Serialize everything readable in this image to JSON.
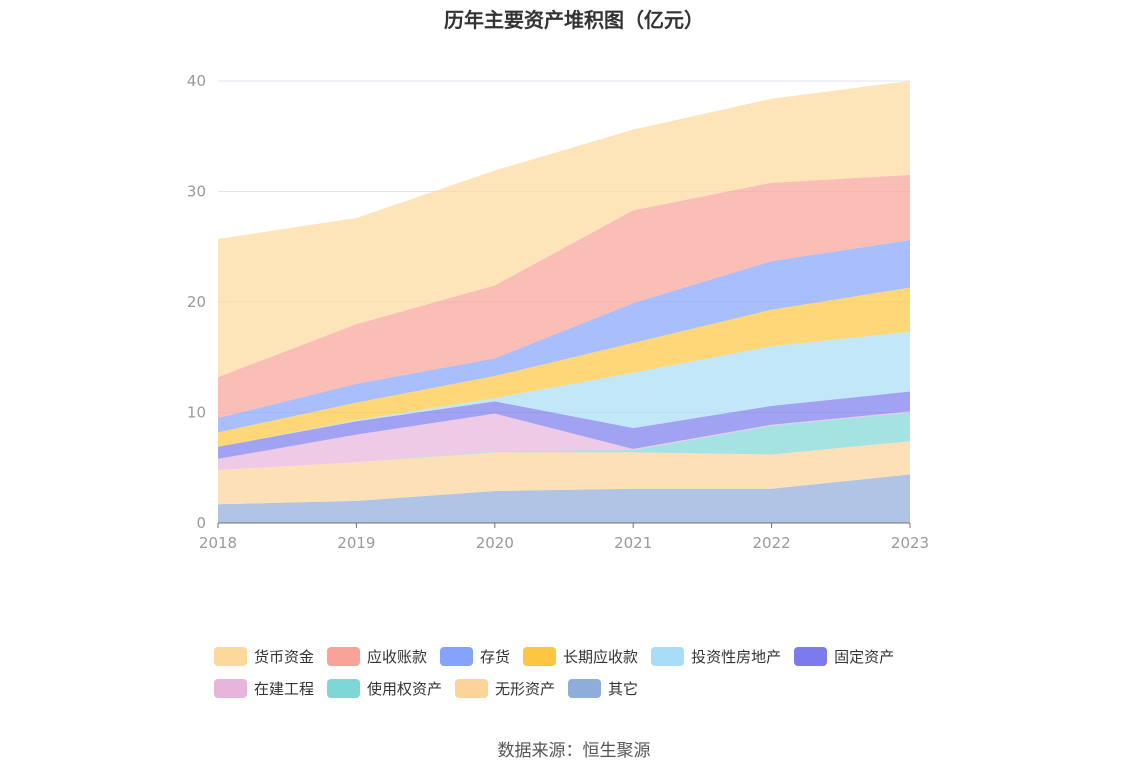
{
  "chart_data": {
    "type": "area",
    "stacked": true,
    "title": "历年主要资产堆积图（亿元）",
    "categories": [
      "2018",
      "2019",
      "2020",
      "2021",
      "2022",
      "2023"
    ],
    "ylim": [
      0,
      40
    ],
    "yticks": [
      "0",
      "10",
      "20",
      "30",
      "40"
    ],
    "grid": true,
    "legend_position": "bottom",
    "series": [
      {
        "name": "其它",
        "color": "#8FADDB",
        "values": [
          1.7,
          2.0,
          2.9,
          3.1,
          3.1,
          4.4
        ]
      },
      {
        "name": "无形资产",
        "color": "#FDD39A",
        "values": [
          3.1,
          3.5,
          3.5,
          3.3,
          3.1,
          3.0
        ]
      },
      {
        "name": "使用权资产",
        "color": "#7FD6D6",
        "values": [
          0.0,
          0.0,
          0.1,
          0.2,
          2.6,
          2.6
        ]
      },
      {
        "name": "在建工程",
        "color": "#E8B4DC",
        "values": [
          1.0,
          2.5,
          3.4,
          0.1,
          0.1,
          0.1
        ]
      },
      {
        "name": "固定资产",
        "color": "#7B7BEE",
        "values": [
          1.1,
          1.2,
          1.1,
          1.9,
          1.7,
          1.8
        ]
      },
      {
        "name": "投资性房地产",
        "color": "#A8DDF7",
        "values": [
          0.0,
          0.1,
          0.3,
          5.0,
          5.4,
          5.4
        ]
      },
      {
        "name": "长期应收款",
        "color": "#FDC640",
        "values": [
          1.3,
          1.6,
          2.0,
          2.7,
          3.3,
          4.0
        ]
      },
      {
        "name": "存货",
        "color": "#85A3FB",
        "values": [
          1.3,
          1.7,
          1.6,
          3.6,
          4.4,
          4.3
        ]
      },
      {
        "name": "应收账款",
        "color": "#F9A299",
        "values": [
          3.7,
          5.4,
          6.6,
          8.4,
          7.1,
          5.9
        ]
      },
      {
        "name": "货币资金",
        "color": "#FDD89B",
        "values": [
          12.5,
          9.6,
          10.4,
          7.3,
          7.6,
          8.5
        ]
      }
    ]
  },
  "legend": {
    "rows": [
      [
        {
          "name": "货币资金",
          "color": "#FDD89B"
        },
        {
          "name": "应收账款",
          "color": "#F9A299"
        },
        {
          "name": "存货",
          "color": "#85A3FB"
        },
        {
          "name": "长期应收款",
          "color": "#FDC640"
        },
        {
          "name": "投资性房地产",
          "color": "#A8DDF7"
        },
        {
          "name": "固定资产",
          "color": "#7B7BEE"
        }
      ],
      [
        {
          "name": "在建工程",
          "color": "#E8B4DC"
        },
        {
          "name": "使用权资产",
          "color": "#7FD6D6"
        },
        {
          "name": "无形资产",
          "color": "#FDD39A"
        },
        {
          "name": "其它",
          "color": "#8FADDB"
        }
      ]
    ]
  },
  "source": "数据来源：恒生聚源"
}
